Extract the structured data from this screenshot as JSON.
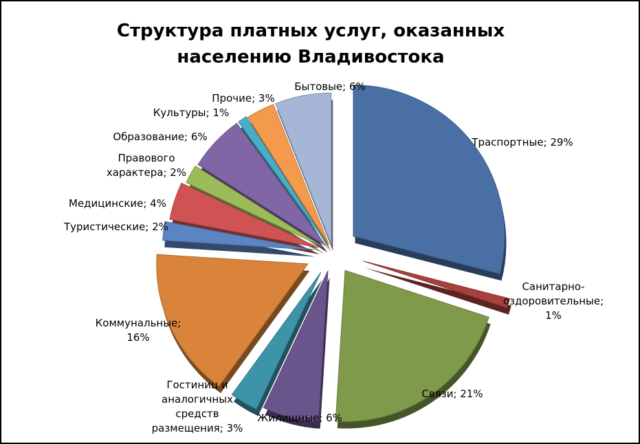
{
  "chart_data": {
    "type": "pie",
    "title": "Структура платных услуг, оказанных населению Владивостока",
    "label_format": "category; percent",
    "slices": [
      {
        "name": "Траспортные",
        "value": 29,
        "label": "Траспортные; 29%",
        "color": "#4A6FA5"
      },
      {
        "name": "Санитарно-оздоровительные",
        "value": 1,
        "label": "Санитарно-оздоровительные; 1%",
        "color": "#A8403C"
      },
      {
        "name": "Связи",
        "value": 21,
        "label": "Связи; 21%",
        "color": "#7F9A4A"
      },
      {
        "name": "Жилищные",
        "value": 6,
        "label": "Жилищные; 6%",
        "color": "#6A548C"
      },
      {
        "name": "Гостиниц и аналогичных средств размещения",
        "value": 3,
        "label": "Гостиниц и аналогичных средств размещения; 3%",
        "color": "#3D93A8"
      },
      {
        "name": "Коммунальные",
        "value": 16,
        "label": "Коммунальные; 16%",
        "color": "#D9843A"
      },
      {
        "name": "Туристические",
        "value": 2,
        "label": "Туристические; 2%",
        "color": "#5B84C4"
      },
      {
        "name": "Медицинские",
        "value": 4,
        "label": "Медицинские; 4%",
        "color": "#CF5352"
      },
      {
        "name": "Правового характера",
        "value": 2,
        "label": "Правового характера; 2%",
        "color": "#9DBB5A"
      },
      {
        "name": "Образование",
        "value": 6,
        "label": "Образование; 6%",
        "color": "#8066A6"
      },
      {
        "name": "Культуры",
        "value": 1,
        "label": "Культуры; 1%",
        "color": "#4AACC6"
      },
      {
        "name": "Прочие",
        "value": 3,
        "label": "Прочие; 3%",
        "color": "#F39A4C"
      },
      {
        "name": "Бытовые",
        "value": 6,
        "label": "Бытовые; 6%",
        "color": "#A5B6D6"
      }
    ]
  }
}
